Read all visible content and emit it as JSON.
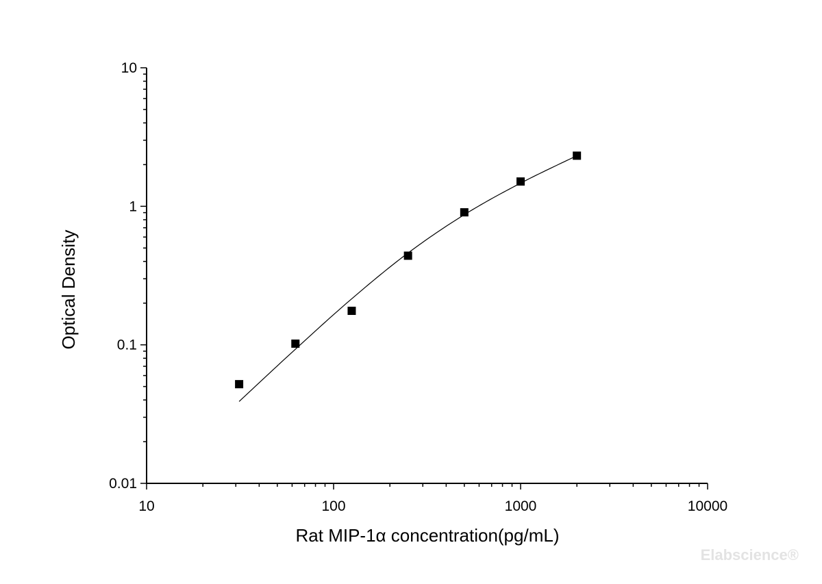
{
  "chart_data": {
    "type": "scatter",
    "title": "",
    "xlabel": "Rat MIP-1α  concentration(pg/mL)",
    "ylabel": "Optical Density",
    "x_scale": "log",
    "y_scale": "log",
    "xlim": [
      10,
      10000
    ],
    "ylim": [
      0.01,
      10
    ],
    "x_ticks": [
      10,
      100,
      1000,
      10000
    ],
    "x_tick_labels": [
      "10",
      "100",
      "1000",
      "10000"
    ],
    "y_ticks": [
      0.01,
      0.1,
      1,
      10
    ],
    "y_tick_labels": [
      "0.01",
      "0.1",
      "1",
      "10"
    ],
    "grid": false,
    "legend": "none",
    "series": [
      {
        "marker": "square",
        "color": "#000000",
        "points": [
          {
            "x": 31.25,
            "y": 0.052
          },
          {
            "x": 62.5,
            "y": 0.102
          },
          {
            "x": 125,
            "y": 0.176
          },
          {
            "x": 250,
            "y": 0.44
          },
          {
            "x": 500,
            "y": 0.905
          },
          {
            "x": 1000,
            "y": 1.51
          },
          {
            "x": 2000,
            "y": 2.32
          }
        ]
      }
    ],
    "fit_curve": {
      "color": "#000000",
      "points": [
        {
          "x": 31.25,
          "y": 0.039
        },
        {
          "x": 62.5,
          "y": 0.093
        },
        {
          "x": 125,
          "y": 0.215
        },
        {
          "x": 250,
          "y": 0.46
        },
        {
          "x": 500,
          "y": 0.87
        },
        {
          "x": 1000,
          "y": 1.47
        },
        {
          "x": 2000,
          "y": 2.32
        }
      ]
    }
  },
  "watermark": "Elabscience®"
}
